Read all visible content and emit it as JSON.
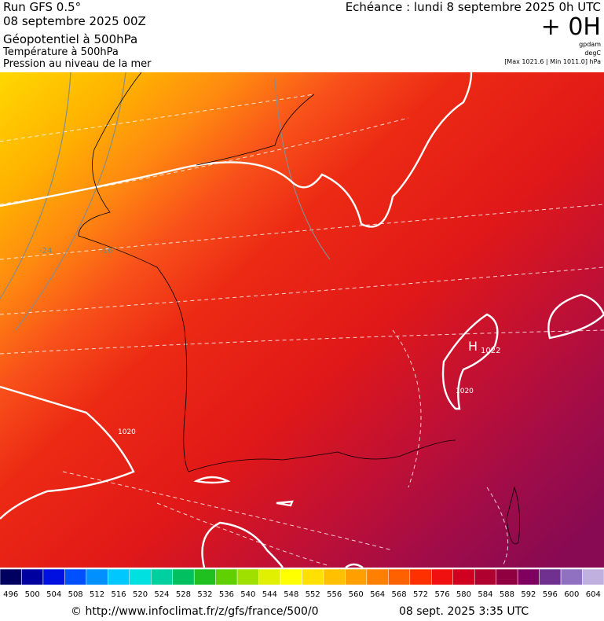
{
  "header": {
    "run": "Run GFS 0.5°",
    "date": "08 septembre 2025 00Z",
    "field1": "Géopotentiel à 500hPa",
    "field2": "Température à 500hPa",
    "field3": "Pression au niveau de la mer",
    "echeance": "Echéance : lundi 8 septembre 2025 0h UTC",
    "offset": "+ 0H",
    "unit1": "gpdam",
    "unit2": "degC",
    "range": "[Max 1021.6 | Min 1011.0] hPa"
  },
  "map": {
    "labels": [
      "H",
      "1022",
      "1020",
      "1020",
      "-24",
      "-16"
    ]
  },
  "colorbar": {
    "labels": [
      496,
      500,
      504,
      508,
      512,
      516,
      520,
      524,
      528,
      532,
      536,
      540,
      544,
      548,
      552,
      556,
      560,
      564,
      568,
      572,
      576,
      580,
      584,
      588,
      592,
      596,
      600,
      604
    ],
    "colors": [
      "#000060",
      "#0000a0",
      "#0010e0",
      "#0050ff",
      "#0090ff",
      "#00c8ff",
      "#00e0e0",
      "#00d0a0",
      "#00c060",
      "#20c020",
      "#60d000",
      "#a0e000",
      "#e0f000",
      "#ffff00",
      "#ffe000",
      "#ffc000",
      "#ffa000",
      "#ff8000",
      "#ff6000",
      "#ff3000",
      "#f01010",
      "#d00020",
      "#b00030",
      "#900040",
      "#800060",
      "#703090",
      "#9070c0",
      "#c0b0e0"
    ]
  },
  "footer": {
    "url": "© http://www.infoclimat.fr/z/gfs/france/500/0",
    "time": "08 sept. 2025  3:35 UTC"
  }
}
